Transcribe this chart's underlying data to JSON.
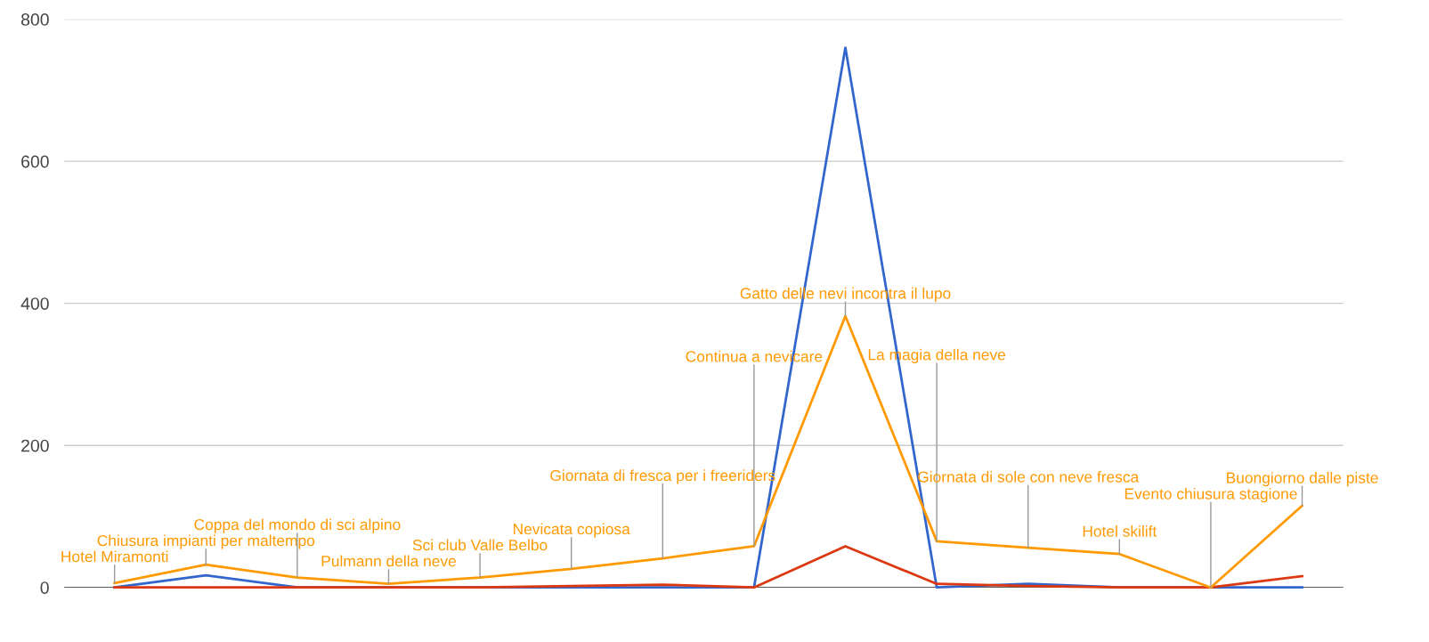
{
  "chart_data": {
    "type": "line",
    "categories": [
      null,
      null,
      null,
      null,
      null,
      null,
      null,
      null,
      null,
      null,
      null,
      null,
      null,
      null
    ],
    "series": [
      {
        "color": "#3366cc",
        "values": [
          0,
          17,
          0,
          0,
          0,
          0,
          0,
          0,
          760,
          0,
          5,
          0,
          0,
          0
        ]
      },
      {
        "color": "#dc3912",
        "values": [
          0,
          0,
          0,
          0,
          0,
          2,
          4,
          0,
          58,
          5,
          2,
          0,
          0,
          16
        ]
      },
      {
        "color": "#ff9900",
        "values": [
          6,
          32,
          14,
          5,
          14,
          26,
          41,
          58,
          382,
          65,
          56,
          47,
          0,
          115
        ],
        "value_labels": [
          "Hotel Miramonti",
          "Chiusura impianti per maltempo",
          "Coppa del mondo di sci alpino",
          "Pulmann della neve",
          "Sci club Valle Belbo",
          "Nevicata copiosa",
          "Giornata di fresca per i freeriders",
          "Continua a nevicare",
          "Gatto delle nevi incontra il lupo",
          "La magia della neve",
          "Giornata di sole con neve fresca",
          "Hotel skilift",
          "Evento chiusura stagione",
          "Buongiorno dalle piste"
        ]
      }
    ],
    "ylim": [
      0,
      800
    ],
    "yticks": [
      0,
      200,
      400,
      600,
      800
    ],
    "grid": "y",
    "legend": false,
    "tick_labels": "y",
    "marker": "none",
    "line_style": "solid",
    "ref_lines": [
      {
        "axis": "y",
        "value": 0,
        "color": "#333333"
      }
    ]
  }
}
